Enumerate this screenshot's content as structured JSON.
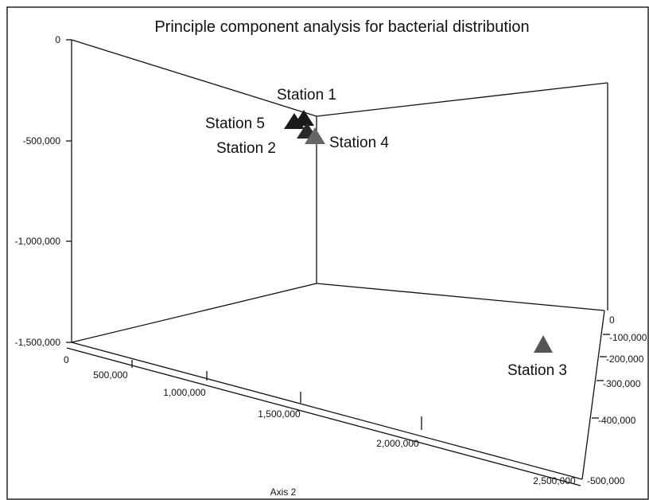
{
  "chart_data": {
    "type": "scatter",
    "title": "Principle component analysis for bacterial distribution",
    "axis2_label": "Axis 2",
    "vertical_axis": {
      "range": [
        -1500000,
        0
      ],
      "ticks": [
        {
          "value": 0,
          "label": "0"
        },
        {
          "value": -500000,
          "label": "-500,000"
        },
        {
          "value": -1000000,
          "label": "-1,000,000"
        },
        {
          "value": -1500000,
          "label": "-1,500,000"
        }
      ]
    },
    "axis2": {
      "range": [
        0,
        2500000
      ],
      "ticks": [
        {
          "value": 0,
          "label": "0"
        },
        {
          "value": 500000,
          "label": "500,000"
        },
        {
          "value": 1000000,
          "label": "1,000,000"
        },
        {
          "value": 1500000,
          "label": "1,500,000"
        },
        {
          "value": 2000000,
          "label": "2,000,000"
        },
        {
          "value": 2500000,
          "label": "2,500,000"
        }
      ]
    },
    "depth_axis": {
      "range": [
        -500000,
        0
      ],
      "ticks": [
        {
          "value": 0,
          "label": "0"
        },
        {
          "value": -100000,
          "label": "-100,000"
        },
        {
          "value": -200000,
          "label": "-200,000"
        },
        {
          "value": -300000,
          "label": "-300,000"
        },
        {
          "value": -400000,
          "label": "-400,000"
        },
        {
          "value": -500000,
          "label": "-500,000"
        }
      ]
    },
    "points": [
      {
        "label": "Station 1",
        "color": "#1a1a1a"
      },
      {
        "label": "Station 5",
        "color": "#1a1a1a"
      },
      {
        "label": "Station 2",
        "color": "#2a2a2a"
      },
      {
        "label": "Station 4",
        "color": "#666666"
      },
      {
        "label": "Station 3",
        "color": "#555555"
      }
    ]
  }
}
